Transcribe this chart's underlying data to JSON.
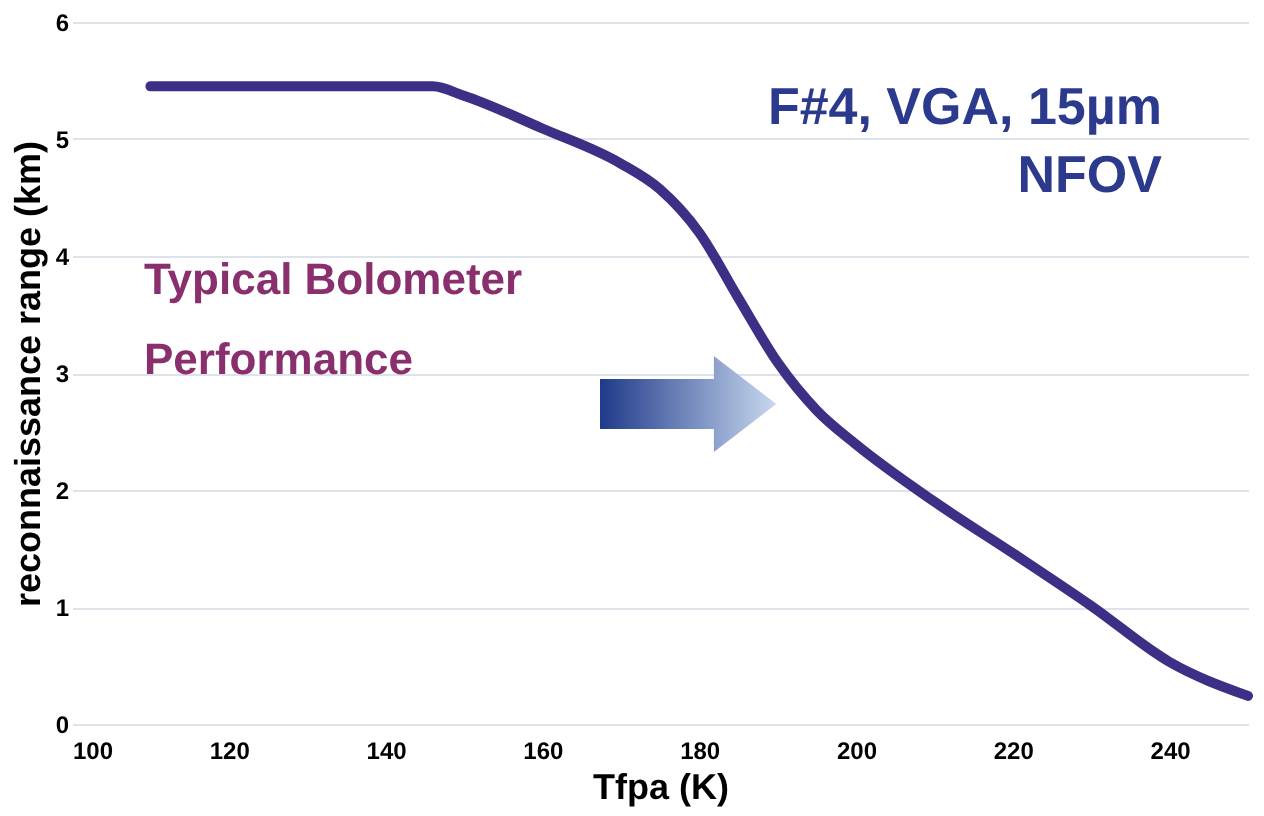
{
  "chart_data": {
    "type": "line",
    "xlabel": "Tfpa (K)",
    "ylabel": "reconnaissance range (km)",
    "annotations": [
      "F#4, VGA, 15µm",
      "NFOV",
      "Typical Bolometer",
      "Performance"
    ],
    "x": [
      110,
      146,
      150,
      160,
      170,
      175,
      180,
      185,
      190,
      195,
      200,
      210,
      220,
      230,
      240,
      250
    ],
    "series": [
      {
        "color": "#3b2f86",
        "values": [
          5.45,
          5.45,
          5.37,
          5.09,
          4.79,
          4.57,
          4.2,
          3.64,
          3.09,
          2.68,
          2.39,
          1.9,
          1.46,
          1.01,
          0.53,
          0.24
        ]
      }
    ],
    "xlim": [
      100,
      250
    ],
    "xticks": [
      100,
      120,
      140,
      160,
      180,
      200,
      220,
      240
    ],
    "ylim": [
      0,
      6
    ],
    "yticks": [
      0,
      1,
      2,
      3,
      4,
      5,
      6
    ],
    "grid": "y"
  }
}
